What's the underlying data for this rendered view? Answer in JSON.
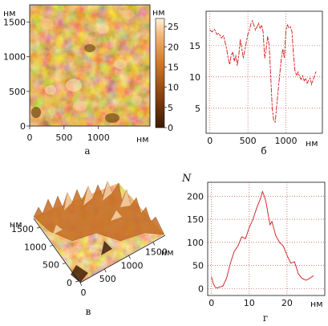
{
  "figure": {
    "panels": {
      "a": {
        "caption": "а",
        "x_unit": "нм",
        "y_unit": "нм",
        "colorbar_unit": "нм",
        "x_ticks": [
          "0",
          "500",
          "1000"
        ],
        "y_ticks": [
          "0",
          "500",
          "1000",
          "1500"
        ],
        "colorbar_ticks": [
          "0",
          "5",
          "10",
          "15",
          "20",
          "25"
        ]
      },
      "b": {
        "caption": "б",
        "x_unit": "нм",
        "x_ticks": [
          "0",
          "500",
          "1000"
        ],
        "y_ticks": [
          "5",
          "10",
          "15"
        ]
      },
      "c": {
        "caption": "в",
        "x_unit": "нм",
        "y_unit": "нм",
        "x_ticks": [
          "0",
          "500",
          "1000",
          "1500"
        ],
        "y_ticks": [
          "0",
          "500",
          "1000",
          "1500"
        ]
      },
      "d": {
        "caption": "г",
        "y_symbol": "N",
        "x_unit": "нм",
        "x_ticks": [
          "0",
          "10",
          "20"
        ],
        "y_ticks": [
          "0",
          "50",
          "100",
          "150",
          "200"
        ]
      }
    }
  },
  "colors": {
    "afm_dark": "#4a2207",
    "afm_mid": "#c46d22",
    "afm_light": "#ffe9c6",
    "trace": "#d01818",
    "grid": "#b03030",
    "frame": "#111111"
  },
  "chart_data": [
    {
      "type": "heatmap",
      "panel": "а",
      "xlim": [
        0,
        1750
      ],
      "ylim": [
        0,
        1750
      ],
      "colorbar_range": [
        0,
        27
      ],
      "x_unit": "нм",
      "y_unit": "нм"
    },
    {
      "type": "line",
      "panel": "б",
      "xlim": [
        -50,
        1480
      ],
      "ylim": [
        1,
        20.5
      ],
      "x_unit": "нм",
      "grid": true,
      "x": [
        0,
        30,
        60,
        90,
        120,
        150,
        180,
        200,
        220,
        240,
        260,
        280,
        300,
        320,
        340,
        360,
        380,
        400,
        420,
        440,
        470,
        500,
        520,
        540,
        560,
        580,
        600,
        620,
        640,
        660,
        680,
        700,
        720,
        740,
        760,
        780,
        800,
        820,
        840,
        860,
        880,
        900,
        920,
        940,
        960,
        980,
        1000,
        1020,
        1040,
        1060,
        1080,
        1100,
        1120,
        1140,
        1160,
        1180,
        1200,
        1220,
        1240,
        1260,
        1280,
        1300,
        1320,
        1340,
        1360,
        1380,
        1400
      ],
      "y": [
        17.5,
        17.2,
        17.6,
        16.8,
        17.0,
        16.2,
        16.6,
        15.5,
        14.5,
        13.0,
        12.0,
        13.5,
        14.0,
        12.5,
        13.5,
        11.8,
        13.5,
        16.0,
        14.5,
        13.0,
        15.0,
        16.8,
        17.5,
        18.5,
        19.0,
        18.2,
        17.5,
        18.0,
        18.6,
        17.8,
        18.3,
        17.2,
        13.0,
        14.5,
        16.5,
        15.0,
        10.0,
        5.0,
        3.0,
        2.8,
        5.5,
        8.0,
        10.5,
        13.0,
        14.5,
        13.0,
        17.5,
        18.3,
        17.8,
        18.0,
        17.2,
        13.5,
        11.0,
        10.2,
        10.8,
        10.0,
        9.6,
        10.2,
        9.4,
        9.8,
        9.0,
        9.5,
        9.8,
        8.8,
        9.6,
        10.3,
        11.0
      ]
    },
    {
      "type": "area",
      "panel": "в",
      "xlim": [
        0,
        1750
      ],
      "ylim": [
        0,
        1750
      ],
      "x_unit": "нм",
      "y_unit": "нм"
    },
    {
      "type": "line",
      "panel": "г",
      "y_symbol": "N",
      "xlim": [
        -1,
        30
      ],
      "ylim": [
        -15,
        230
      ],
      "x_unit": "нм",
      "x": [
        0,
        0.5,
        1,
        1.5,
        2,
        3,
        4,
        5,
        6,
        7,
        8,
        9,
        10,
        11,
        12,
        13,
        13.5,
        14,
        14.5,
        15,
        15.5,
        16,
        17,
        18,
        19,
        20,
        21,
        22,
        23,
        24,
        25,
        26,
        27
      ],
      "y": [
        25,
        10,
        3,
        1,
        3,
        5,
        22,
        55,
        80,
        92,
        112,
        108,
        132,
        150,
        175,
        195,
        210,
        200,
        185,
        160,
        138,
        145,
        115,
        100,
        92,
        72,
        55,
        58,
        32,
        22,
        18,
        22,
        28
      ]
    }
  ]
}
